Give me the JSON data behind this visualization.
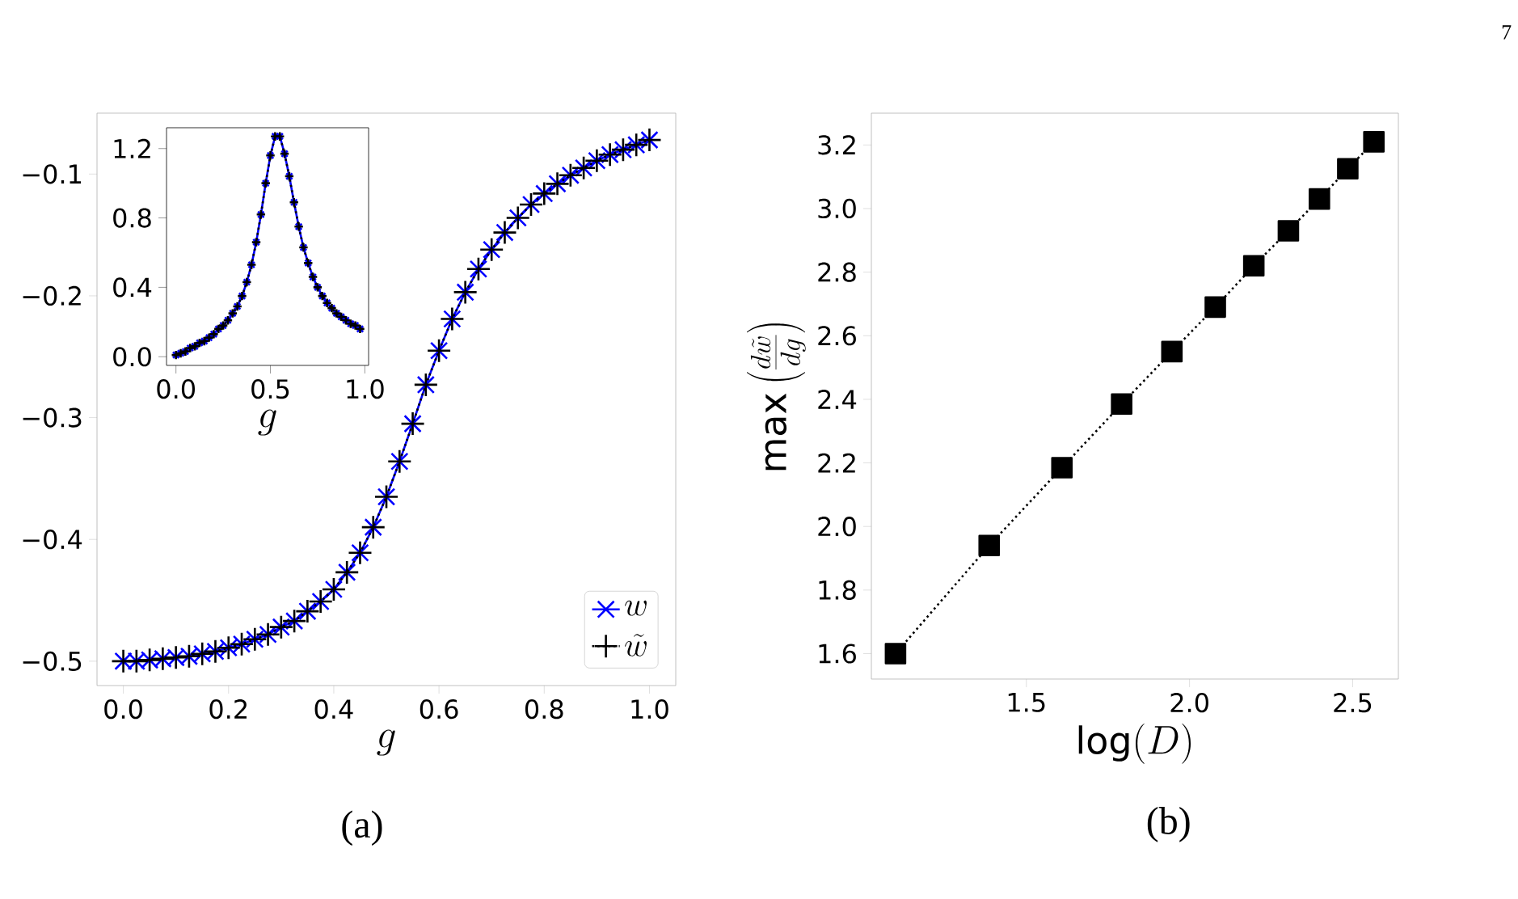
{
  "chart_data": [
    {
      "type": "line",
      "xlabel": "g",
      "x": [
        0,
        0.025,
        0.05,
        0.075,
        0.1,
        0.125,
        0.15,
        0.175,
        0.2,
        0.225,
        0.25,
        0.275,
        0.3,
        0.325,
        0.35,
        0.375,
        0.4,
        0.425,
        0.45,
        0.475,
        0.5,
        0.525,
        0.55,
        0.575,
        0.6,
        0.625,
        0.65,
        0.675,
        0.7,
        0.725,
        0.75,
        0.775,
        0.8,
        0.825,
        0.85,
        0.875,
        0.9,
        0.925,
        0.95,
        0.975,
        1.0
      ],
      "series": [
        {
          "name": "w",
          "color": "#0000ff",
          "marker": "cross",
          "line_style": "solid",
          "values": [
            -0.5,
            -0.5,
            -0.499,
            -0.498,
            -0.497,
            -0.496,
            -0.494,
            -0.492,
            -0.489,
            -0.486,
            -0.482,
            -0.478,
            -0.472,
            -0.467,
            -0.459,
            -0.451,
            -0.441,
            -0.427,
            -0.411,
            -0.39,
            -0.365,
            -0.336,
            -0.305,
            -0.273,
            -0.245,
            -0.219,
            -0.197,
            -0.178,
            -0.162,
            -0.148,
            -0.136,
            -0.125,
            -0.116,
            -0.108,
            -0.101,
            -0.095,
            -0.089,
            -0.084,
            -0.08,
            -0.076,
            -0.072
          ]
        },
        {
          "name": "\\tilde{w}",
          "color": "#000000",
          "marker": "plus",
          "line_style": "dotted",
          "values": [
            -0.5,
            -0.5,
            -0.499,
            -0.498,
            -0.497,
            -0.496,
            -0.494,
            -0.492,
            -0.489,
            -0.486,
            -0.482,
            -0.478,
            -0.472,
            -0.467,
            -0.459,
            -0.451,
            -0.441,
            -0.427,
            -0.411,
            -0.39,
            -0.365,
            -0.336,
            -0.305,
            -0.273,
            -0.245,
            -0.219,
            -0.197,
            -0.178,
            -0.162,
            -0.148,
            -0.136,
            -0.125,
            -0.116,
            -0.108,
            -0.101,
            -0.095,
            -0.089,
            -0.084,
            -0.08,
            -0.076,
            -0.072
          ]
        }
      ],
      "xlim": [
        -0.05,
        1.05
      ],
      "ylim": [
        -0.52,
        -0.05
      ],
      "xticks": [
        {
          "value": 0,
          "label": "0.0"
        },
        {
          "value": 0.2,
          "label": "0.2"
        },
        {
          "value": 0.4,
          "label": "0.4"
        },
        {
          "value": 0.6,
          "label": "0.6"
        },
        {
          "value": 0.8,
          "label": "0.8"
        },
        {
          "value": 1.0,
          "label": "1.0"
        }
      ],
      "yticks": [
        {
          "value": -0.5,
          "label": "−0.5"
        },
        {
          "value": -0.4,
          "label": "−0.4"
        },
        {
          "value": -0.3,
          "label": "−0.3"
        },
        {
          "value": -0.2,
          "label": "−0.2"
        },
        {
          "value": -0.1,
          "label": "−0.1"
        }
      ],
      "legend": "bottom right",
      "annotations": [
        "(a)"
      ]
    },
    {
      "type": "line",
      "xlabel": "g",
      "x": [
        0,
        0.025,
        0.05,
        0.075,
        0.1,
        0.125,
        0.15,
        0.175,
        0.2,
        0.225,
        0.25,
        0.275,
        0.3,
        0.325,
        0.35,
        0.375,
        0.4,
        0.425,
        0.45,
        0.475,
        0.5,
        0.525,
        0.55,
        0.575,
        0.6,
        0.625,
        0.65,
        0.675,
        0.7,
        0.725,
        0.75,
        0.775,
        0.8,
        0.825,
        0.85,
        0.875,
        0.9,
        0.925,
        0.95,
        0.975
      ],
      "series": [
        {
          "color": "#0000ff",
          "marker": "cross",
          "line_style": "solid",
          "values": [
            0.01,
            0.02,
            0.03,
            0.05,
            0.06,
            0.08,
            0.09,
            0.11,
            0.13,
            0.16,
            0.18,
            0.21,
            0.25,
            0.29,
            0.35,
            0.43,
            0.53,
            0.66,
            0.82,
            1.0,
            1.16,
            1.27,
            1.27,
            1.17,
            1.04,
            0.89,
            0.75,
            0.63,
            0.54,
            0.46,
            0.4,
            0.35,
            0.31,
            0.28,
            0.25,
            0.23,
            0.21,
            0.19,
            0.18,
            0.16
          ]
        },
        {
          "color": "#000000",
          "marker": "plus",
          "line_style": "dotted",
          "values": [
            0.01,
            0.02,
            0.03,
            0.05,
            0.06,
            0.08,
            0.09,
            0.11,
            0.13,
            0.16,
            0.18,
            0.21,
            0.25,
            0.29,
            0.35,
            0.43,
            0.53,
            0.66,
            0.82,
            1.0,
            1.16,
            1.27,
            1.27,
            1.17,
            1.04,
            0.89,
            0.75,
            0.63,
            0.54,
            0.46,
            0.4,
            0.35,
            0.31,
            0.28,
            0.25,
            0.23,
            0.21,
            0.19,
            0.18,
            0.16
          ]
        }
      ],
      "xlim": [
        -0.05,
        1.02
      ],
      "ylim": [
        -0.05,
        1.32
      ],
      "xticks": [
        {
          "value": 0,
          "label": "0.0"
        },
        {
          "value": 0.5,
          "label": "0.5"
        },
        {
          "value": 1.0,
          "label": "1.0"
        }
      ],
      "yticks": [
        {
          "value": 0,
          "label": "0.0"
        },
        {
          "value": 0.4,
          "label": "0.4"
        },
        {
          "value": 0.8,
          "label": "0.8"
        },
        {
          "value": 1.2,
          "label": "1.2"
        }
      ]
    },
    {
      "type": "line",
      "xlabel": "\\log(D)",
      "ylabel": "\\max\\left(\\frac{d\\tilde{w}}{dg}\\right)",
      "x": [
        1.099,
        1.386,
        1.609,
        1.792,
        1.946,
        2.079,
        2.197,
        2.303,
        2.398,
        2.485,
        2.565
      ],
      "series": [
        {
          "color": "#000000",
          "marker": "square",
          "line_style": "dotted",
          "values": [
            1.6,
            1.94,
            2.185,
            2.385,
            2.55,
            2.69,
            2.82,
            2.93,
            3.03,
            3.125,
            3.21
          ]
        }
      ],
      "xlim": [
        1.025,
        2.64
      ],
      "ylim": [
        1.52,
        3.3
      ],
      "xticks": [
        {
          "value": 1.5,
          "label": "1.5"
        },
        {
          "value": 2.0,
          "label": "2.0"
        },
        {
          "value": 2.5,
          "label": "2.5"
        }
      ],
      "yticks": [
        {
          "value": 1.6,
          "label": "1.6"
        },
        {
          "value": 1.8,
          "label": "1.8"
        },
        {
          "value": 2.0,
          "label": "2.0"
        },
        {
          "value": 2.2,
          "label": "2.2"
        },
        {
          "value": 2.4,
          "label": "2.4"
        },
        {
          "value": 2.6,
          "label": "2.6"
        },
        {
          "value": 2.8,
          "label": "2.8"
        },
        {
          "value": 3.0,
          "label": "3.0"
        },
        {
          "value": 3.2,
          "label": "3.2"
        }
      ],
      "annotations": [
        "(b)",
        "7"
      ]
    }
  ]
}
